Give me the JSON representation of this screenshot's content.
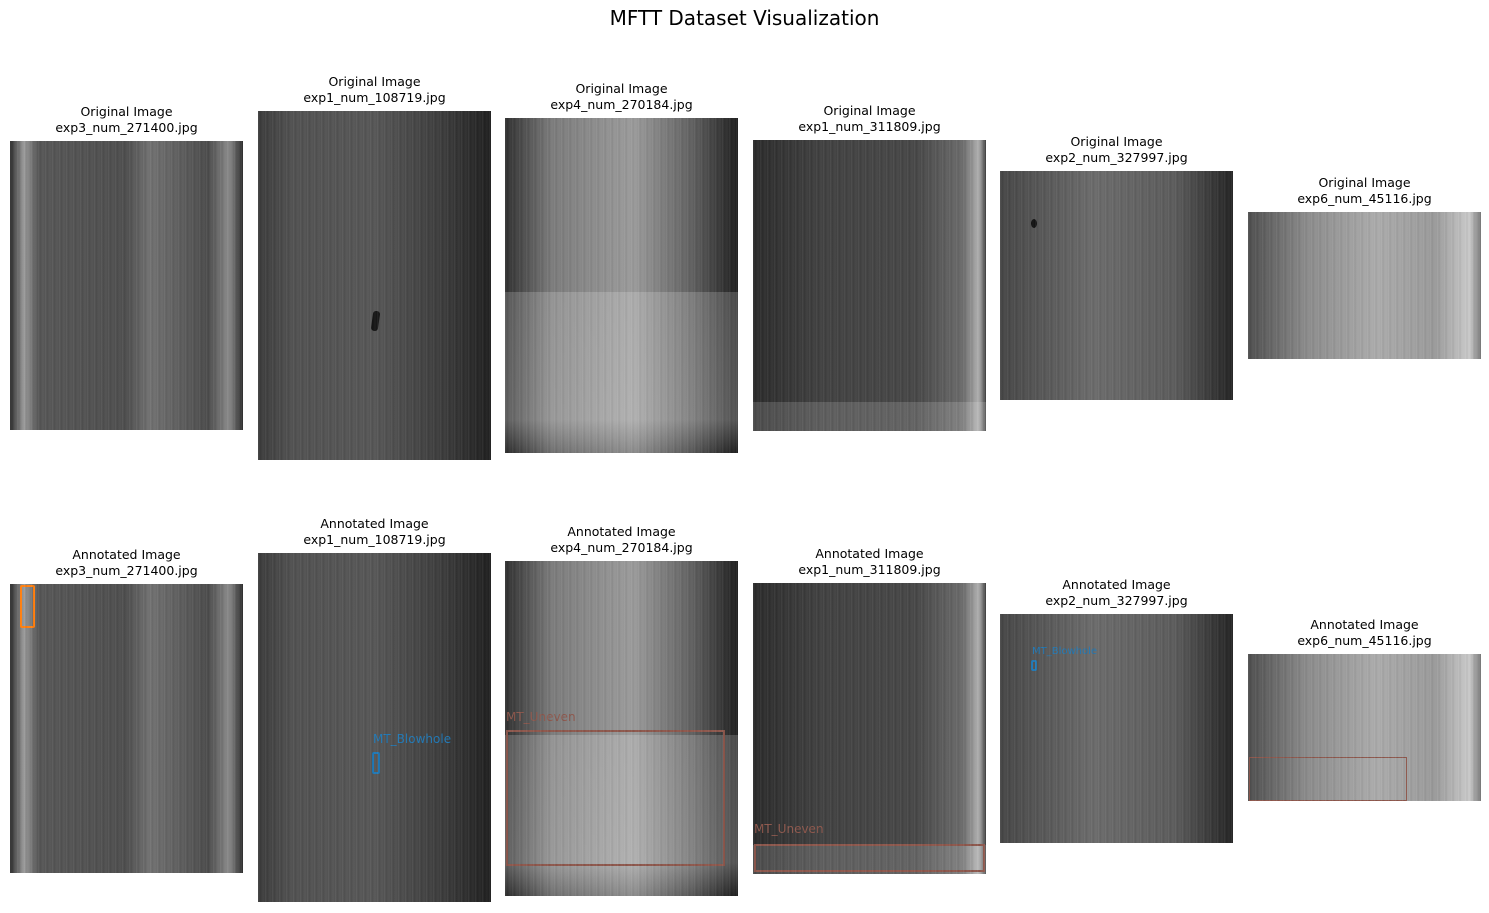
{
  "figure": {
    "title": "MFTT Dataset Visualization"
  },
  "originals": [
    {
      "title": "Original Image",
      "file": "exp3_num_271400.jpg"
    },
    {
      "title": "Original Image",
      "file": "exp1_num_108719.jpg"
    },
    {
      "title": "Original Image",
      "file": "exp4_num_270184.jpg"
    },
    {
      "title": "Original Image",
      "file": "exp1_num_311809.jpg"
    },
    {
      "title": "Original Image",
      "file": "exp2_num_327997.jpg"
    },
    {
      "title": "Original Image",
      "file": "exp6_num_45116.jpg"
    }
  ],
  "annotated": [
    {
      "title": "Annotated Image",
      "file": "exp3_num_271400.jpg",
      "boxes": [
        {
          "label": "",
          "color": "#ff7f0e"
        }
      ]
    },
    {
      "title": "Annotated Image",
      "file": "exp1_num_108719.jpg",
      "boxes": [
        {
          "label": "MT_Blowhole",
          "color": "#1f77b4"
        }
      ]
    },
    {
      "title": "Annotated Image",
      "file": "exp4_num_270184.jpg",
      "boxes": [
        {
          "label": "MT_Uneven",
          "color": "#8c564b"
        }
      ]
    },
    {
      "title": "Annotated Image",
      "file": "exp1_num_311809.jpg",
      "boxes": [
        {
          "label": "MT_Uneven",
          "color": "#8c564b"
        }
      ]
    },
    {
      "title": "Annotated Image",
      "file": "exp2_num_327997.jpg",
      "boxes": [
        {
          "label": "MT_Blowhole",
          "color": "#1f77b4"
        }
      ]
    },
    {
      "title": "Annotated Image",
      "file": "exp6_num_45116.jpg",
      "boxes": [
        {
          "label": "",
          "color": "#8c564b"
        }
      ]
    }
  ]
}
